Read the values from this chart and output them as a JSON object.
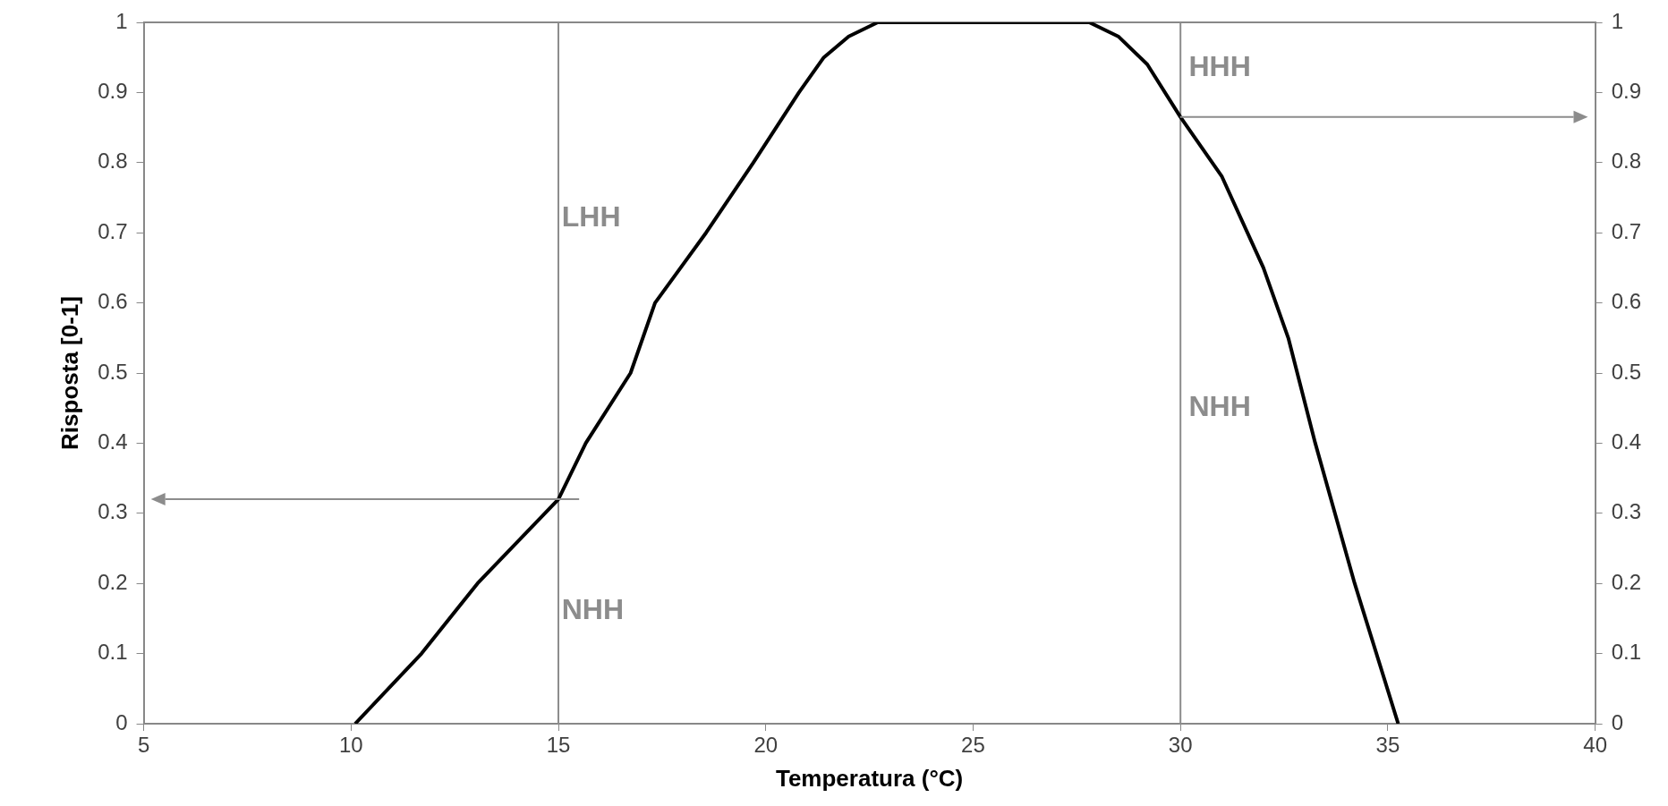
{
  "chart_data": {
    "type": "line",
    "xlabel": "Temperatura (°C)",
    "ylabel": "Risposta [0-1]",
    "xlim": [
      5,
      40
    ],
    "xticks": [
      5,
      10,
      15,
      20,
      25,
      30,
      35,
      40
    ],
    "ylim": [
      0,
      1
    ],
    "yticks": [
      0,
      0.1,
      0.2,
      0.3,
      0.4,
      0.5,
      0.6,
      0.7,
      0.8,
      0.9,
      1
    ],
    "y2lim": [
      0,
      1
    ],
    "y2ticks": [
      0,
      0.1,
      0.2,
      0.3,
      0.4,
      0.5,
      0.6,
      0.7,
      0.8,
      0.9,
      1
    ],
    "grid": false,
    "legend": false,
    "marker": "none",
    "line_style": "solid",
    "series": [
      {
        "color": "#000000",
        "x": [
          10.1,
          11.7,
          13.05,
          15,
          15.66,
          16.74,
          17.33,
          18.56,
          19.7,
          20.8,
          21.4,
          22.0,
          22.7,
          23.2,
          25,
          27.5,
          27.8,
          28.5,
          29.2,
          30,
          31,
          32,
          32.6,
          33.25,
          34.2,
          35.25
        ],
        "values": [
          0,
          0.1,
          0.2,
          0.32,
          0.4,
          0.5,
          0.6,
          0.7,
          0.8,
          0.9,
          0.95,
          0.98,
          1,
          1,
          1,
          1,
          1,
          0.98,
          0.94,
          0.865,
          0.78,
          0.65,
          0.55,
          0.4,
          0.2,
          0
        ]
      }
    ],
    "ref_lines": [
      {
        "axis": "x",
        "value": 15,
        "color": "#8c8c8c"
      },
      {
        "axis": "x",
        "value": 30,
        "color": "#8c8c8c"
      }
    ],
    "annotations": [
      "LHH",
      "NHH",
      "HHH",
      "NHH"
    ]
  }
}
